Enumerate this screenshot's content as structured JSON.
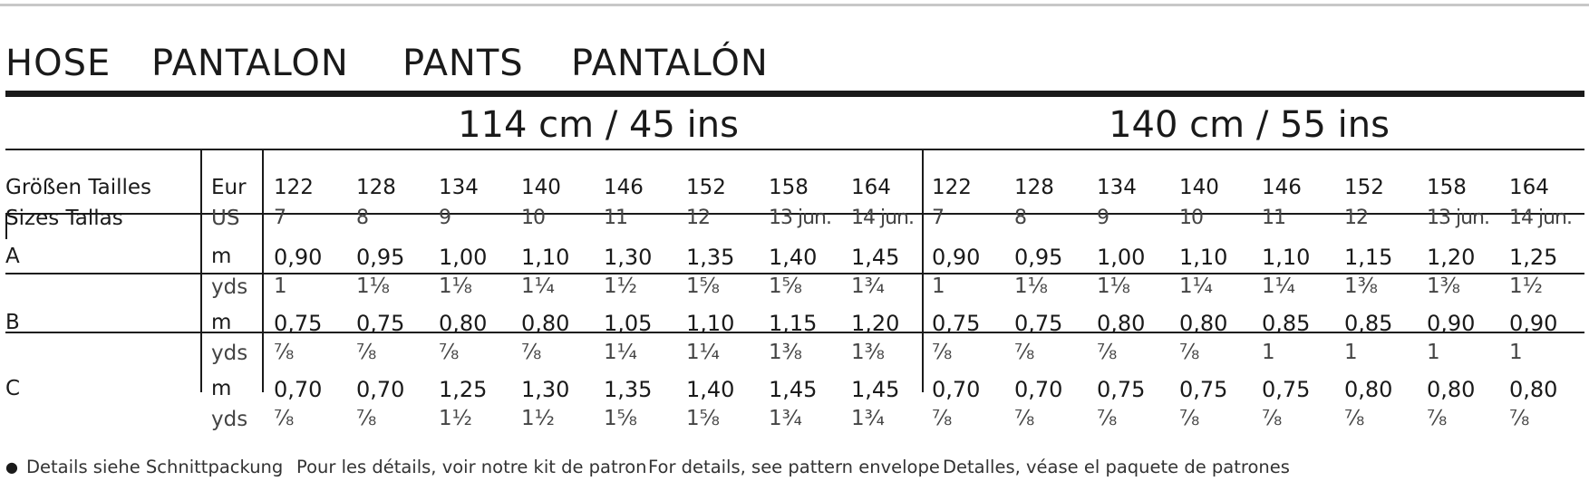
{
  "header": {
    "title": [
      "HOSE",
      "PANTALON",
      "PANTS",
      "PANTALÓN"
    ]
  },
  "widths": [
    "114 cm / 45 ins",
    "140 cm / 55 ins"
  ],
  "table": {
    "size_labels": [
      "Größen Tailles",
      "Sizes Tallas"
    ],
    "size_units": [
      "Eur",
      "US"
    ],
    "sizes_eur": [
      "122",
      "128",
      "134",
      "140",
      "146",
      "152",
      "158",
      "164"
    ],
    "sizes_us": [
      "7",
      "8",
      "9",
      "10",
      "11",
      "12",
      "13 jun.",
      "14 jun."
    ],
    "rows": [
      {
        "label": "A",
        "units": [
          "m",
          "yds"
        ],
        "m": [
          "0,90",
          "0,95",
          "1,00",
          "1,10",
          "1,30",
          "1,35",
          "1,40",
          "1,45",
          "0,90",
          "0,95",
          "1,00",
          "1,10",
          "1,10",
          "1,15",
          "1,20",
          "1,25"
        ],
        "yds": [
          "1",
          "1⅛",
          "1⅛",
          "1¼",
          "1½",
          "1⅝",
          "1⅝",
          "1¾",
          "1",
          "1⅛",
          "1⅛",
          "1¼",
          "1¼",
          "1⅜",
          "1⅜",
          "1½"
        ]
      },
      {
        "label": "B",
        "units": [
          "m",
          "yds"
        ],
        "m": [
          "0,75",
          "0,75",
          "0,80",
          "0,80",
          "1,05",
          "1,10",
          "1,15",
          "1,20",
          "0,75",
          "0,75",
          "0,80",
          "0,80",
          "0,85",
          "0,85",
          "0,90",
          "0,90"
        ],
        "yds": [
          "⅞",
          "⅞",
          "⅞",
          "⅞",
          "1¼",
          "1¼",
          "1⅜",
          "1⅜",
          "⅞",
          "⅞",
          "⅞",
          "⅞",
          "1",
          "1",
          "1",
          "1"
        ]
      },
      {
        "label": "C",
        "units": [
          "m",
          "yds"
        ],
        "m": [
          "0,70",
          "0,70",
          "1,25",
          "1,30",
          "1,35",
          "1,40",
          "1,45",
          "1,45",
          "0,70",
          "0,70",
          "0,75",
          "0,75",
          "0,75",
          "0,80",
          "0,80",
          "0,80"
        ],
        "yds": [
          "⅞",
          "⅞",
          "1½",
          "1½",
          "1⅝",
          "1⅝",
          "1¾",
          "1¾",
          "⅞",
          "⅞",
          "⅞",
          "⅞",
          "⅞",
          "⅞",
          "⅞",
          "⅞"
        ]
      }
    ]
  },
  "footer": {
    "bullet": "●",
    "notes": [
      "Details siehe Schnittpackung",
      "Pour les détails, voir notre kit de patron",
      "For details, see pattern envelope",
      "Detalles, véase el paquete de patrones"
    ]
  }
}
